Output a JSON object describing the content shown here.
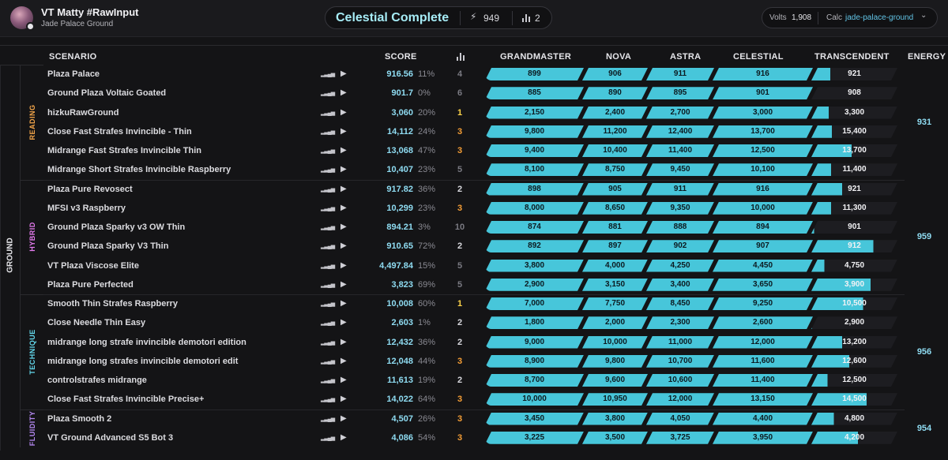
{
  "user": {
    "name": "VT Matty #RawInput",
    "subtitle": "Jade Palace Ground",
    "avatar_icon": "avatar-with-check-icon"
  },
  "summary": {
    "title": "Celestial Complete",
    "count": "949",
    "count_icon": "bolt-icon",
    "bars_count": "2",
    "bars_icon": "bar-chart-icon"
  },
  "volts": {
    "label": "Volts",
    "value": "1,908"
  },
  "calc": {
    "label": "Calc",
    "value": "jade-palace-ground"
  },
  "columns": {
    "scenario": "SCENARIO",
    "score": "SCORE",
    "grandmaster": "GRANDMASTER",
    "nova": "NOVA",
    "astra": "ASTRA",
    "celestial": "CELESTIAL",
    "transcendent": "TRANSCENDENT",
    "energy": "ENERGY"
  },
  "colors": {
    "grandmaster": "#f5e663",
    "nova": "#e787f5",
    "astra": "#f47fba",
    "celestial": "#82e7f2",
    "transcendent": "#f4b4ef",
    "bar": "#47c6da",
    "rank_gold": "#ffd54a",
    "rank_orange": "#f59e36",
    "rank_plain": "#d8d8dd",
    "rank_dim": "#7a7a82"
  },
  "groups": [
    {
      "label": "GROUND"
    }
  ],
  "categories": [
    {
      "label": "READING",
      "color": "#f5a64a",
      "energy": "931"
    },
    {
      "label": "HYBRID",
      "color": "#e67cf0",
      "energy": "959"
    },
    {
      "label": "TECHNIQUE",
      "color": "#63d8ec",
      "energy": "956"
    },
    {
      "label": "FLUIDITY",
      "color": "#b68af5",
      "energy": "954"
    }
  ],
  "rows": [
    {
      "name": "Plaza Palace",
      "score": "916.56",
      "pct": "11%",
      "rank": "4",
      "rank_style": "dim",
      "thresholds": [
        "899",
        "906",
        "911",
        "916",
        "921"
      ],
      "progress": 0.22
    },
    {
      "name": "Ground Plaza Voltaic Goated",
      "score": "901.7",
      "pct": "0%",
      "rank": "6",
      "rank_style": "dim",
      "thresholds": [
        "885",
        "890",
        "895",
        "901",
        "908"
      ],
      "progress": 0.0
    },
    {
      "name": "hizkuRawGround",
      "score": "3,060",
      "pct": "20%",
      "rank": "1",
      "rank_style": "gold",
      "thresholds": [
        "2,150",
        "2,400",
        "2,700",
        "3,000",
        "3,300"
      ],
      "progress": 0.2
    },
    {
      "name": "Close Fast Strafes Invincible - Thin",
      "score": "14,112",
      "pct": "24%",
      "rank": "3",
      "rank_style": "orange",
      "thresholds": [
        "9,800",
        "11,200",
        "12,400",
        "13,700",
        "15,400"
      ],
      "progress": 0.24
    },
    {
      "name": "Midrange Fast Strafes Invincible Thin",
      "score": "13,068",
      "pct": "47%",
      "rank": "3",
      "rank_style": "orange",
      "thresholds": [
        "9,400",
        "10,400",
        "11,400",
        "12,500",
        "13,700"
      ],
      "progress": 0.47
    },
    {
      "name": "Midrange Short Strafes Invincible Raspberry",
      "score": "10,407",
      "pct": "23%",
      "rank": "5",
      "rank_style": "dim",
      "thresholds": [
        "8,100",
        "8,750",
        "9,450",
        "10,100",
        "11,400"
      ],
      "progress": 0.23
    },
    {
      "name": "Plaza Pure Revosect",
      "score": "917.82",
      "pct": "36%",
      "rank": "2",
      "rank_style": "plain",
      "thresholds": [
        "898",
        "905",
        "911",
        "916",
        "921"
      ],
      "progress": 0.36
    },
    {
      "name": "MFSI v3 Raspberry",
      "score": "10,299",
      "pct": "23%",
      "rank": "3",
      "rank_style": "orange",
      "thresholds": [
        "8,000",
        "8,650",
        "9,350",
        "10,000",
        "11,300"
      ],
      "progress": 0.23
    },
    {
      "name": "Ground Plaza Sparky v3 OW Thin",
      "score": "894.21",
      "pct": "3%",
      "rank": "10",
      "rank_style": "dim",
      "thresholds": [
        "874",
        "881",
        "888",
        "894",
        "901"
      ],
      "progress": 0.03
    },
    {
      "name": "Ground Plaza Sparky V3 Thin",
      "score": "910.65",
      "pct": "72%",
      "rank": "2",
      "rank_style": "plain",
      "thresholds": [
        "892",
        "897",
        "902",
        "907",
        "912"
      ],
      "progress": 0.72
    },
    {
      "name": "VT Plaza Viscose Elite",
      "score": "4,497.84",
      "pct": "15%",
      "rank": "5",
      "rank_style": "dim",
      "thresholds": [
        "3,800",
        "4,000",
        "4,250",
        "4,450",
        "4,750"
      ],
      "progress": 0.15
    },
    {
      "name": "Plaza Pure Perfected",
      "score": "3,823",
      "pct": "69%",
      "rank": "5",
      "rank_style": "dim",
      "thresholds": [
        "2,900",
        "3,150",
        "3,400",
        "3,650",
        "3,900"
      ],
      "progress": 0.69
    },
    {
      "name": "Smooth Thin Strafes Raspberry",
      "score": "10,008",
      "pct": "60%",
      "rank": "1",
      "rank_style": "gold",
      "thresholds": [
        "7,000",
        "7,750",
        "8,450",
        "9,250",
        "10,500"
      ],
      "progress": 0.6
    },
    {
      "name": "Close Needle Thin Easy",
      "score": "2,603",
      "pct": "1%",
      "rank": "2",
      "rank_style": "plain",
      "thresholds": [
        "1,800",
        "2,000",
        "2,300",
        "2,600",
        "2,900"
      ],
      "progress": 0.01
    },
    {
      "name": "midrange long strafe invincible demotori edition",
      "score": "12,432",
      "pct": "36%",
      "rank": "2",
      "rank_style": "plain",
      "thresholds": [
        "9,000",
        "10,000",
        "11,000",
        "12,000",
        "13,200"
      ],
      "progress": 0.36
    },
    {
      "name": "midrange long strafes invincible demotori edit",
      "score": "12,048",
      "pct": "44%",
      "rank": "3",
      "rank_style": "orange",
      "thresholds": [
        "8,900",
        "9,800",
        "10,700",
        "11,600",
        "12,600"
      ],
      "progress": 0.44
    },
    {
      "name": "controlstrafes midrange",
      "score": "11,613",
      "pct": "19%",
      "rank": "2",
      "rank_style": "plain",
      "thresholds": [
        "8,700",
        "9,600",
        "10,600",
        "11,400",
        "12,500"
      ],
      "progress": 0.19
    },
    {
      "name": "Close Fast Strafes Invincible Precise+",
      "score": "14,022",
      "pct": "64%",
      "rank": "3",
      "rank_style": "orange",
      "thresholds": [
        "10,000",
        "10,950",
        "12,000",
        "13,150",
        "14,500"
      ],
      "progress": 0.64
    },
    {
      "name": "Plaza Smooth 2",
      "score": "4,507",
      "pct": "26%",
      "rank": "3",
      "rank_style": "orange",
      "thresholds": [
        "3,450",
        "3,800",
        "4,050",
        "4,400",
        "4,800"
      ],
      "progress": 0.26
    },
    {
      "name": "VT Ground Advanced S5 Bot 3",
      "score": "4,086",
      "pct": "54%",
      "rank": "3",
      "rank_style": "orange",
      "thresholds": [
        "3,225",
        "3,500",
        "3,725",
        "3,950",
        "4,200"
      ],
      "progress": 0.54
    }
  ]
}
